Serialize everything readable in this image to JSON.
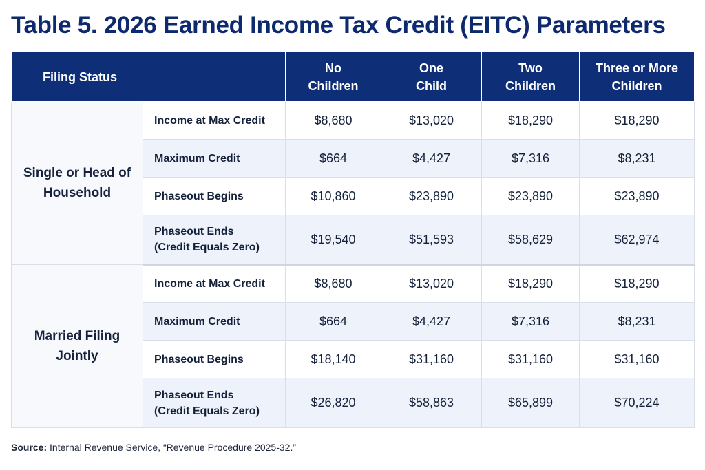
{
  "title": "Table 5. 2026 Earned Income Tax Credit (EITC) Parameters",
  "header": {
    "filing_status": "Filing Status",
    "parameter": "",
    "columns": [
      [
        "No",
        "Children"
      ],
      [
        "One",
        "Child"
      ],
      [
        "Two",
        "Children"
      ],
      [
        "Three or More",
        "Children"
      ]
    ]
  },
  "groups": [
    {
      "status_lines": [
        "Single or Head of",
        "Household"
      ],
      "rows": [
        {
          "label_lines": [
            "Income at Max Credit"
          ],
          "values": [
            "$8,680",
            "$13,020",
            "$18,290",
            "$18,290"
          ]
        },
        {
          "label_lines": [
            "Maximum Credit"
          ],
          "values": [
            "$664",
            "$4,427",
            "$7,316",
            "$8,231"
          ]
        },
        {
          "label_lines": [
            "Phaseout Begins"
          ],
          "values": [
            "$10,860",
            "$23,890",
            "$23,890",
            "$23,890"
          ]
        },
        {
          "label_lines": [
            "Phaseout Ends",
            "(Credit Equals Zero)"
          ],
          "values": [
            "$19,540",
            "$51,593",
            "$58,629",
            "$62,974"
          ]
        }
      ]
    },
    {
      "status_lines": [
        "Married Filing",
        "Jointly"
      ],
      "rows": [
        {
          "label_lines": [
            "Income at Max Credit"
          ],
          "values": [
            "$8,680",
            "$13,020",
            "$18,290",
            "$18,290"
          ]
        },
        {
          "label_lines": [
            "Maximum Credit"
          ],
          "values": [
            "$664",
            "$4,427",
            "$7,316",
            "$8,231"
          ]
        },
        {
          "label_lines": [
            "Phaseout Begins"
          ],
          "values": [
            "$18,140",
            "$31,160",
            "$31,160",
            "$31,160"
          ]
        },
        {
          "label_lines": [
            "Phaseout Ends",
            "(Credit Equals Zero)"
          ],
          "values": [
            "$26,820",
            "$58,863",
            "$65,899",
            "$70,224"
          ]
        }
      ]
    }
  ],
  "source": {
    "label": "Source:",
    "text": " Internal Revenue Service, “Revenue Procedure 2025-32.”"
  },
  "colors": {
    "title": "#0e2a6e",
    "header_bg": "#0e2f78",
    "row_alt_bg": "#eef3fb",
    "border": "#d9dfe8"
  }
}
